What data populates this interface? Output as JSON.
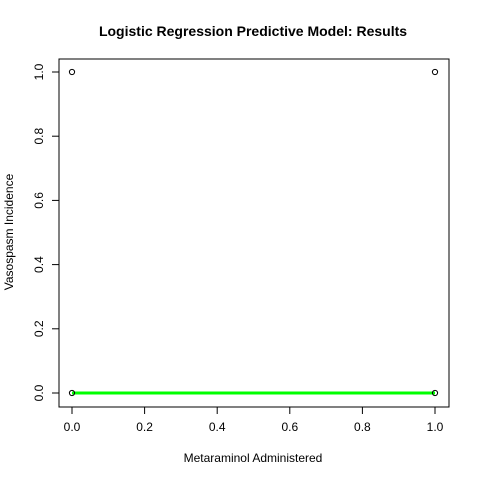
{
  "chart_data": {
    "type": "scatter",
    "title": "Logistic Regression Predictive Model: Results",
    "xlabel": "Metaraminol Administered",
    "ylabel": "Vasospasm Incidence",
    "xlim": [
      0,
      1
    ],
    "ylim": [
      0,
      1
    ],
    "x_ticks": [
      "0.0",
      "0.2",
      "0.4",
      "0.6",
      "0.8",
      "1.0"
    ],
    "y_ticks": [
      "0.0",
      "0.2",
      "0.4",
      "0.6",
      "0.8",
      "1.0"
    ],
    "grid": false,
    "points": [
      {
        "x": 0,
        "y": 0
      },
      {
        "x": 0,
        "y": 1
      },
      {
        "x": 1,
        "y": 0
      },
      {
        "x": 1,
        "y": 1
      }
    ],
    "fit_line": {
      "x": [
        0,
        1
      ],
      "y": [
        0,
        0
      ],
      "color": "#00ff00"
    }
  }
}
